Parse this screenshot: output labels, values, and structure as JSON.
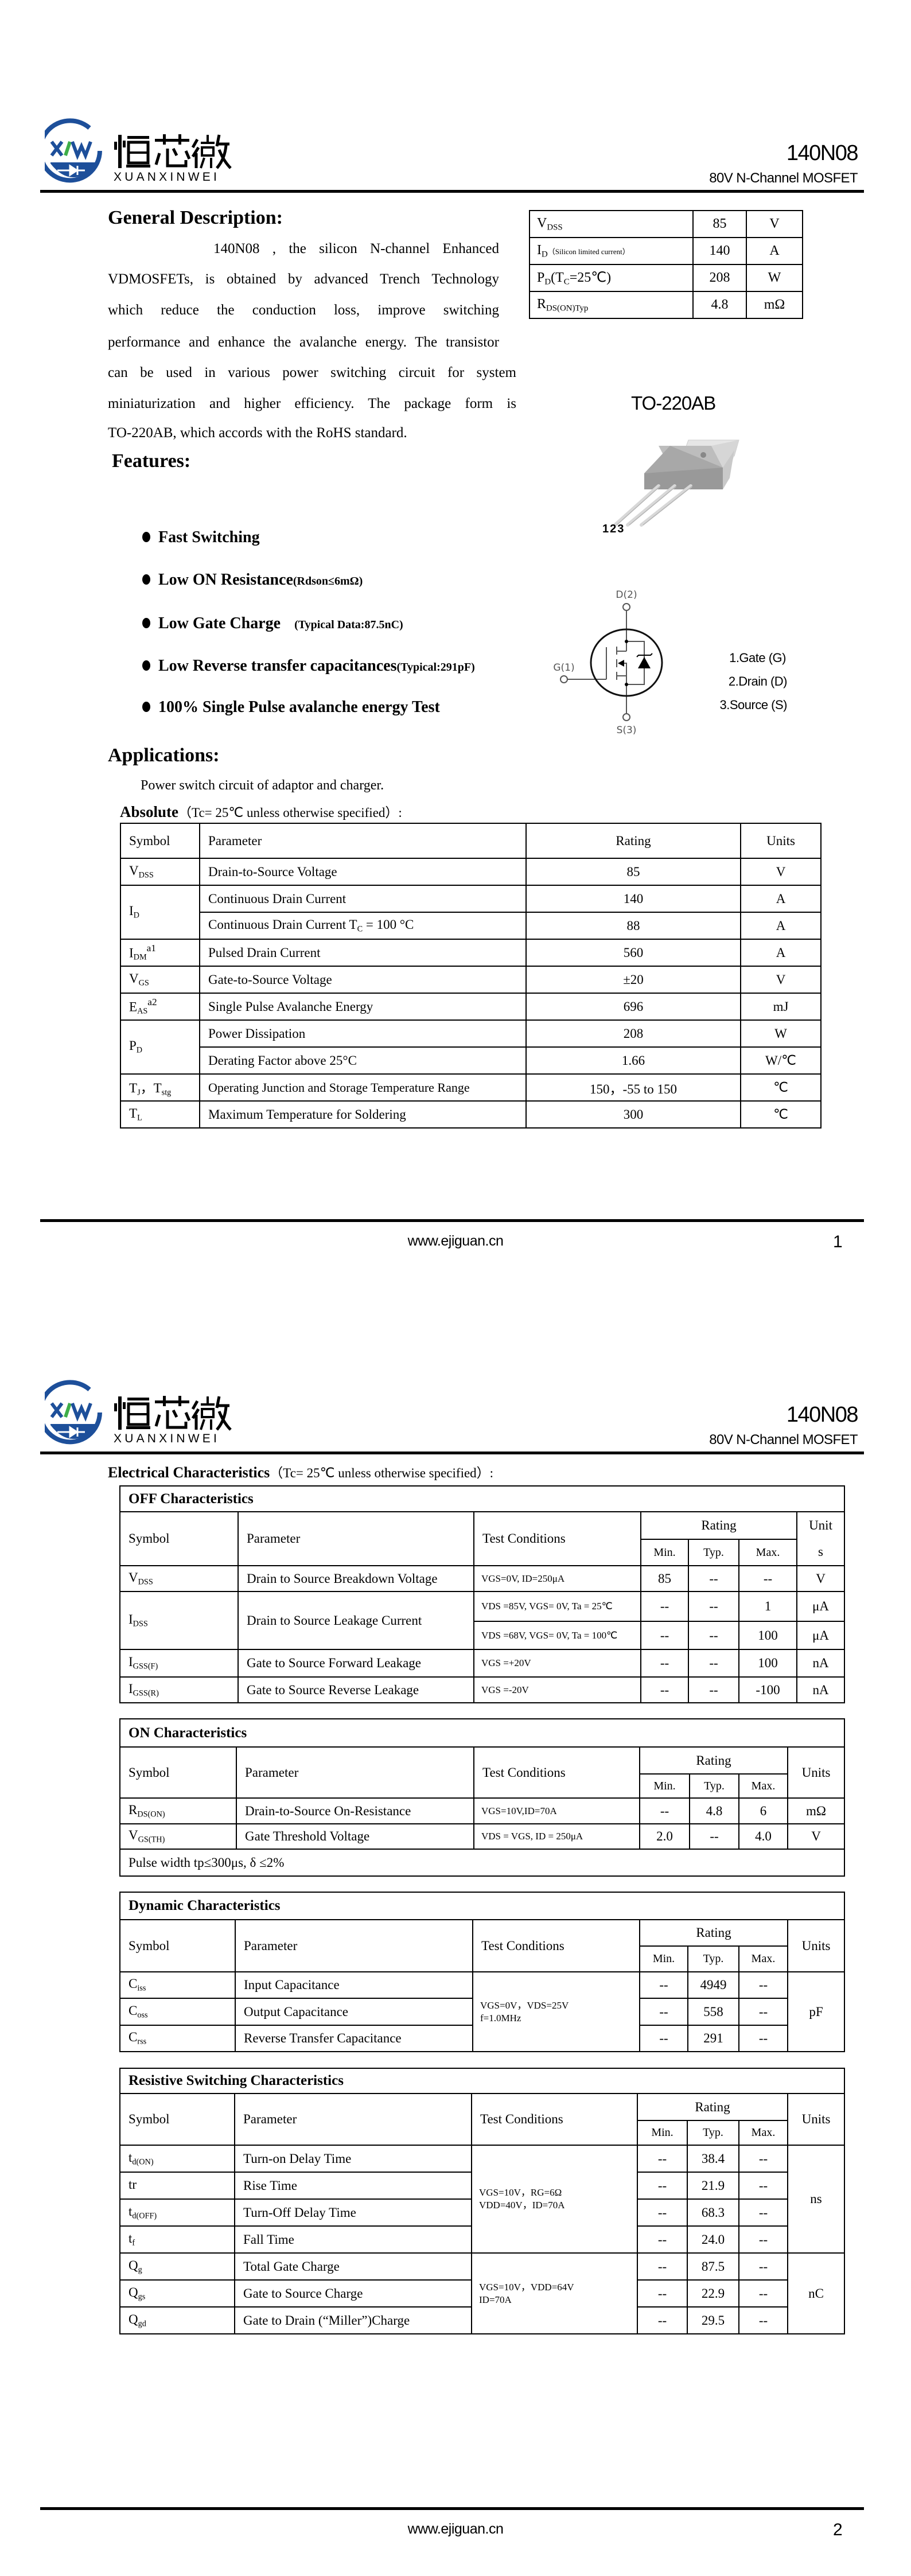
{
  "brand": {
    "logo_text_cn": "恒芯微",
    "logo_text_en": "XUANXINWEI",
    "logo_letters": "XXW",
    "colors": {
      "blue": "#1d4f9a",
      "green": "#3fae49"
    }
  },
  "header": {
    "part_number": "140N08",
    "subtitle": "80V N-Channel MOSFET"
  },
  "footer": {
    "website": "www.ejiguan.cn"
  },
  "pages": [
    {
      "number": "1"
    },
    {
      "number": "2"
    }
  ],
  "general": {
    "heading": "General Description:",
    "lines": [
      "140N08   , the silicon N-channel   Enhanced",
      "VDMOSFETs, is obtained by advanced Trench Technology",
      "which reduce the conduction loss, improve switching",
      "performance and enhance the avalanche energy. The transistor",
      "can be used in various power switching circuit for system",
      "miniaturization and higher efficiency. The package form is",
      "TO-220AB, which accords with the RoHS standard."
    ]
  },
  "summary": [
    {
      "s": "V",
      "sub": "DSS",
      "note": "",
      "value": "85",
      "unit": "V"
    },
    {
      "s": "I",
      "sub": "D",
      "note": "（Silicon limited current）",
      "value": "140",
      "unit": "A"
    },
    {
      "s": "P",
      "sub": "D",
      "note": "(T",
      "note_sub": "C",
      "note_end": "=25℃)",
      "value": "208",
      "unit": "W"
    },
    {
      "s": "R",
      "sub": "DS(ON)Typ",
      "note": "",
      "value": "4.8",
      "unit": "mΩ"
    }
  ],
  "package": {
    "name": "TO-220AB",
    "pins_label": "123",
    "pin_list": [
      "1.Gate (G)",
      "2.Drain (D)",
      "3.Source (S)"
    ],
    "symbol_labels": {
      "drain": "D(2)",
      "gate": "G(1)",
      "source": "S(3)"
    }
  },
  "features": {
    "heading": "Features:",
    "items": [
      {
        "text": "Fast Switching",
        "note": ""
      },
      {
        "text": "Low ON Resistance",
        "note": "(Rdson≤6mΩ)"
      },
      {
        "text": "Low Gate Charge",
        "note": "(Typical Data:87.5nC)"
      },
      {
        "text": "Low Reverse transfer capacitances",
        "note": "(Typical:291pF)"
      },
      {
        "text": "100% Single Pulse avalanche energy Test",
        "note": ""
      }
    ]
  },
  "applications": {
    "heading": "Applications:",
    "text": "Power switch circuit of adaptor and charger."
  },
  "absolute": {
    "title_bold": "Absolute",
    "title_rest": "（Tc= 25℃  unless otherwise specified）:",
    "headers": [
      "Symbol",
      "Parameter",
      "Rating",
      "Units"
    ],
    "rows": [
      {
        "s": "V",
        "sub": "DSS",
        "param": "Drain-to-Source Voltage",
        "rating": "85",
        "unit": "V"
      },
      {
        "s": "I",
        "sub": "D",
        "param": "Continuous Drain Current",
        "rating": "140",
        "unit": "A"
      },
      {
        "param": "Continuous Drain Current T",
        "param_sub": "C",
        "param_end": " = 100 °C",
        "rating": "88",
        "unit": "A"
      },
      {
        "s": "I",
        "sub": "DM",
        "sup": "a1",
        "param": "Pulsed Drain Current",
        "rating": "560",
        "unit": "A"
      },
      {
        "s": "V",
        "sub": "GS",
        "param": "Gate-to-Source Voltage",
        "rating": "±20",
        "unit": "V"
      },
      {
        "s": "E",
        "sub": "AS",
        "sup": "a2",
        "param": "Single Pulse Avalanche Energy",
        "rating": "696",
        "unit": "mJ"
      },
      {
        "s": "P",
        "sub": "D",
        "param": "Power Dissipation",
        "rating": "208",
        "unit": "W"
      },
      {
        "param": "Derating Factor above 25°C",
        "rating": "1.66",
        "unit": "W/℃"
      },
      {
        "s": "T",
        "sub": "J",
        "s2": "，T",
        "sub2": "stg",
        "param": "Operating Junction and Storage Temperature Range",
        "rating": "150，-55 to 150",
        "unit": "℃"
      },
      {
        "s": "T",
        "sub": "L",
        "param": "Maximum Temperature for Soldering",
        "rating": "300",
        "unit": "℃"
      }
    ]
  },
  "electrical": {
    "title_bold": "Electrical Characteristics",
    "title_rest": "（Tc= 25℃  unless otherwise specified）:"
  },
  "col_headers": {
    "symbol": "Symbol",
    "parameter": "Parameter",
    "test": "Test Conditions",
    "rating": "Rating",
    "min": "Min.",
    "typ": "Typ.",
    "max": "Max.",
    "units": "Units",
    "unit_a": "Unit",
    "unit_b": "s"
  },
  "off": {
    "title": "OFF Characteristics",
    "rows": [
      {
        "s": "V",
        "sub": "DSS",
        "param": "Drain to Source Breakdown Voltage",
        "test": "VGS=0V, ID=250μA",
        "min": "85",
        "typ": "--",
        "max": "--",
        "unit": "V"
      },
      {
        "s": "I",
        "sub": "DSS",
        "param": "Drain to Source Leakage Current",
        "test": "VDS =85V, VGS= 0V, Ta = 25℃",
        "min": "--",
        "typ": "--",
        "max": "1",
        "unit": "μA"
      },
      {
        "test": "VDS =68V, VGS= 0V, Ta = 100℃",
        "min": "--",
        "typ": "--",
        "max": "100",
        "unit": "μA"
      },
      {
        "s": "I",
        "sub": "GSS(F)",
        "param": "Gate to Source Forward Leakage",
        "test": "VGS =+20V",
        "min": "--",
        "typ": "--",
        "max": "100",
        "unit": "nA"
      },
      {
        "s": "I",
        "sub": "GSS(R)",
        "param": "Gate to Source Reverse Leakage",
        "test": "VGS =-20V",
        "min": "--",
        "typ": "--",
        "max": "-100",
        "unit": "nA"
      }
    ]
  },
  "on": {
    "title": "ON Characteristics",
    "rows": [
      {
        "s": "R",
        "sub": "DS(ON)",
        "param": "Drain-to-Source On-Resistance",
        "test": "VGS=10V,ID=70A",
        "min": "--",
        "typ": "4.8",
        "max": "6",
        "unit": "mΩ"
      },
      {
        "s": "V",
        "sub": "GS(TH)",
        "param": "Gate Threshold Voltage",
        "test": "VDS = VGS, ID = 250μA",
        "min": "2.0",
        "typ": "--",
        "max": "4.0",
        "unit": "V"
      }
    ],
    "note": "Pulse width tp≤300μs, δ ≤2%"
  },
  "dynamic": {
    "title": "Dynamic Characteristics",
    "test": "VGS=0V，VDS=25V f=1.0MHz",
    "unit": "pF",
    "rows": [
      {
        "s": "C",
        "sub": "iss",
        "param": "Input Capacitance",
        "min": "--",
        "typ": "4949",
        "max": "--"
      },
      {
        "s": "C",
        "sub": "oss",
        "param": "Output Capacitance",
        "min": "--",
        "typ": "558",
        "max": "--"
      },
      {
        "s": "C",
        "sub": "rss",
        "param": "Reverse Transfer Capacitance",
        "min": "--",
        "typ": "291",
        "max": "--"
      }
    ]
  },
  "resistive": {
    "title": "Resistive Switching Characteristics",
    "test_a": "VGS=10V，RG=6Ω VDD=40V，ID=70A",
    "unit_a": "ns",
    "test_b": "VGS=10V，VDD=64V ID=70A",
    "unit_b": "nC",
    "rows": [
      {
        "s": "t",
        "sub": "d(ON)",
        "param": "Turn-on Delay Time",
        "min": "--",
        "typ": "38.4",
        "max": "--"
      },
      {
        "s": "tr",
        "sub": "",
        "param": "Rise Time",
        "min": "--",
        "typ": "21.9",
        "max": "--"
      },
      {
        "s": "t",
        "sub": "d(OFF)",
        "param": "Turn-Off Delay Time",
        "min": "--",
        "typ": "68.3",
        "max": "--"
      },
      {
        "s": "t",
        "sub": "f",
        "param": "Fall Time",
        "min": "--",
        "typ": "24.0",
        "max": "--"
      },
      {
        "s": "Q",
        "sub": "g",
        "param": "Total Gate Charge",
        "min": "--",
        "typ": "87.5",
        "max": "--"
      },
      {
        "s": "Q",
        "sub": "gs",
        "param": "Gate to Source Charge",
        "min": "--",
        "typ": "22.9",
        "max": "--"
      },
      {
        "s": "Q",
        "sub": "gd",
        "param": "Gate to Drain (“Miller”)Charge",
        "min": "--",
        "typ": "29.5",
        "max": "--"
      }
    ]
  }
}
